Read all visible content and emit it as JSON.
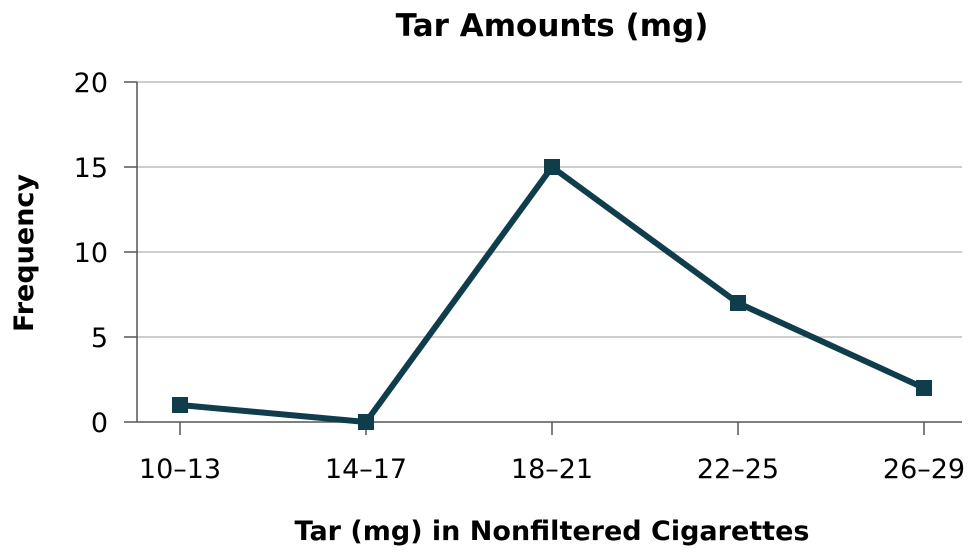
{
  "chart_data": {
    "type": "line",
    "title": "Tar Amounts (mg)",
    "xlabel": "Tar (mg) in Nonfiltered Cigarettes",
    "ylabel": "Frequency",
    "categories": [
      "10–13",
      "14–17",
      "18–21",
      "22–25",
      "26–29"
    ],
    "series": [
      {
        "values": [
          1,
          0,
          15,
          7,
          2
        ]
      }
    ],
    "ylim": [
      0,
      20
    ],
    "yticks": [
      "0",
      "5",
      "10",
      "15",
      "20"
    ],
    "grid": true,
    "legend": "none",
    "colors": {
      "line": "#0f3d4c",
      "marker": "#0f3d4c"
    }
  }
}
